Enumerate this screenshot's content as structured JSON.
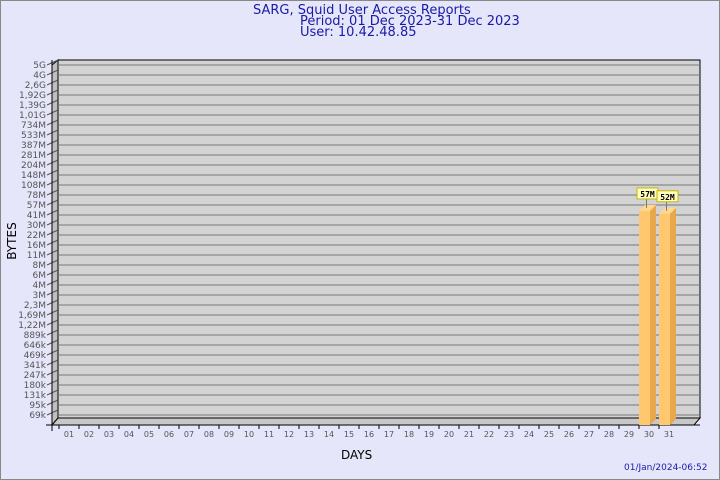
{
  "header": {
    "title": "SARG, Squid User Access Reports",
    "period": "Period: 01 Dec 2023-31 Dec 2023",
    "user": "User: 10.42.48.85"
  },
  "footer": {
    "timestamp": "01/Jan/2024-06:52"
  },
  "colors": {
    "background": "#e6e6fa",
    "plot": "#d3d3d3",
    "bar": "#ffc86e",
    "bar_side": "#e6a84a",
    "title": "#1a1aa6"
  },
  "chart_data": {
    "type": "bar",
    "title": "SARG, Squid User Access Reports",
    "xlabel": "DAYS",
    "ylabel": "BYTES",
    "yscale": "log",
    "grid": true,
    "yticks": [
      "69k",
      "95k",
      "131k",
      "180k",
      "247k",
      "341k",
      "469k",
      "646k",
      "889k",
      "1,22M",
      "1,69M",
      "2,3M",
      "3M",
      "4M",
      "6M",
      "8M",
      "11M",
      "16M",
      "22M",
      "30M",
      "41M",
      "57M",
      "78M",
      "108M",
      "148M",
      "204M",
      "281M",
      "387M",
      "533M",
      "734M",
      "1,01G",
      "1,39G",
      "1,92G",
      "2,6G",
      "4G",
      "5G"
    ],
    "categories": [
      "01",
      "02",
      "03",
      "04",
      "05",
      "06",
      "07",
      "08",
      "09",
      "10",
      "11",
      "12",
      "13",
      "14",
      "15",
      "16",
      "17",
      "18",
      "19",
      "20",
      "21",
      "22",
      "23",
      "24",
      "25",
      "26",
      "27",
      "28",
      "29",
      "30",
      "31"
    ],
    "values": [
      0,
      0,
      0,
      0,
      0,
      0,
      0,
      0,
      0,
      0,
      0,
      0,
      0,
      0,
      0,
      0,
      0,
      0,
      0,
      0,
      0,
      0,
      0,
      0,
      0,
      0,
      0,
      0,
      0,
      57000000,
      52000000
    ],
    "data_labels": {
      "30": "57M",
      "31": "52M"
    }
  }
}
